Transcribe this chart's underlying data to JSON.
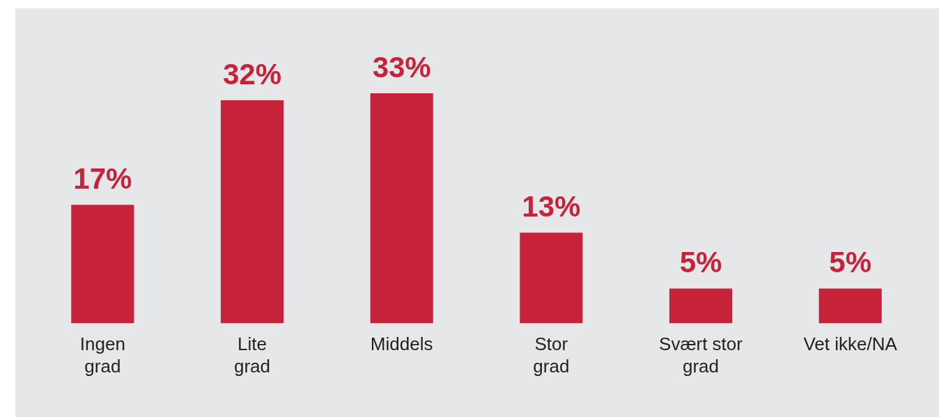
{
  "chart_data": {
    "type": "bar",
    "categories": [
      "Ingen\ngrad",
      "Lite\ngrad",
      "Middels",
      "Stor\ngrad",
      "Svært stor\ngrad",
      "Vet ikke/NA"
    ],
    "values": [
      17,
      32,
      33,
      13,
      5,
      5
    ],
    "value_labels": [
      "17%",
      "32%",
      "33%",
      "13%",
      "5%",
      "5%"
    ],
    "color": "#c6223a",
    "grid": false,
    "legend": false,
    "tick_labels": "x"
  }
}
